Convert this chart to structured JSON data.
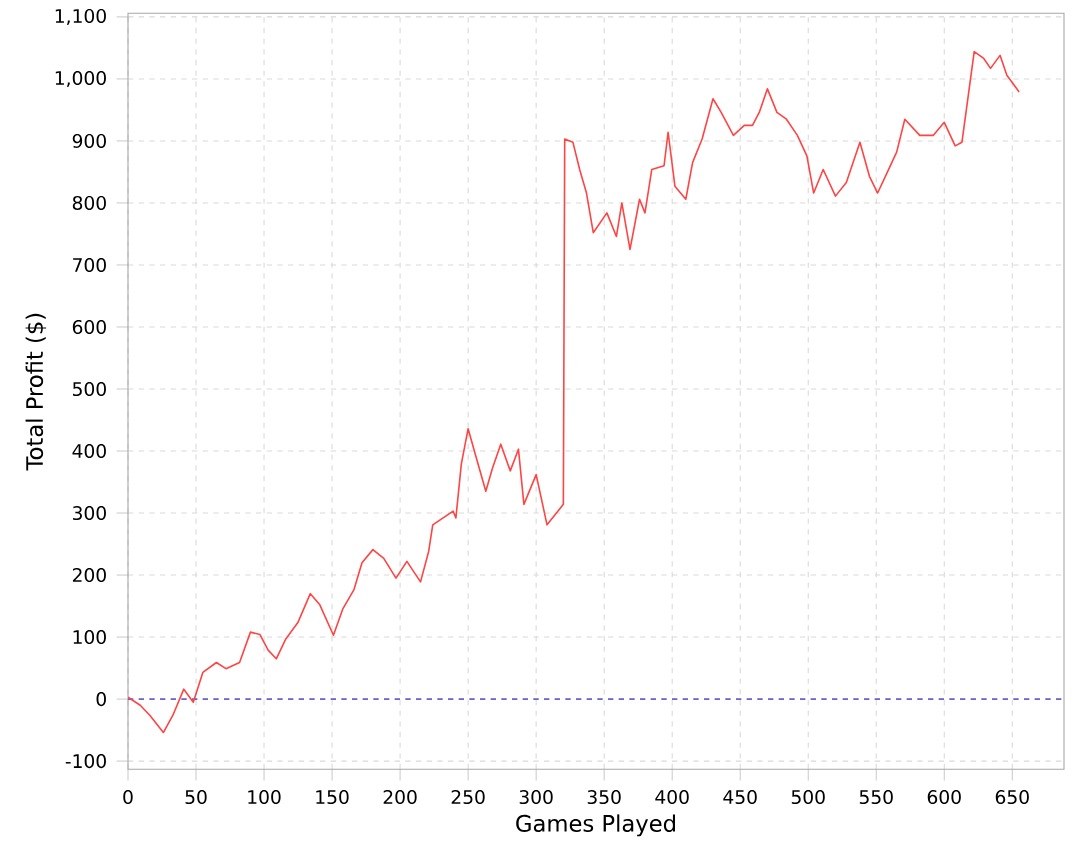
{
  "chart_data": {
    "type": "line",
    "xlabel": "Games Played",
    "ylabel": "Total Profit ($)",
    "x": [
      0,
      9,
      16,
      26,
      33,
      41,
      48,
      55,
      65,
      72,
      82,
      90,
      97,
      103,
      109,
      116,
      125,
      134,
      141,
      151,
      158,
      166,
      172,
      180,
      188,
      197,
      205,
      215,
      221,
      224,
      239,
      241,
      245,
      250,
      256,
      263,
      268,
      274,
      281,
      287,
      291,
      300,
      308,
      320,
      321,
      327,
      332,
      337,
      342,
      352,
      359,
      363,
      369,
      376,
      380,
      385,
      394,
      397,
      402,
      410,
      415,
      422,
      430,
      436,
      445,
      453,
      459,
      464,
      470,
      477,
      484,
      492,
      499,
      504,
      511,
      520,
      528,
      538,
      545,
      551,
      558,
      565,
      571,
      582,
      592,
      600,
      608,
      613,
      622,
      629,
      634,
      641,
      646,
      655
    ],
    "series": [
      {
        "color": "#ff4444",
        "values": [
          3,
          -10,
          -26,
          -54,
          -26,
          16,
          -5,
          43,
          59,
          49,
          59,
          108,
          104,
          79,
          65,
          97,
          124,
          170,
          152,
          103,
          146,
          176,
          220,
          241,
          227,
          195,
          222,
          189,
          238,
          281,
          303,
          292,
          379,
          436,
          389,
          335,
          373,
          411,
          368,
          403,
          314,
          362,
          281,
          314,
          903,
          898,
          854,
          816,
          752,
          784,
          746,
          800,
          725,
          806,
          784,
          854,
          860,
          914,
          827,
          806,
          865,
          903,
          968,
          946,
          909,
          925,
          925,
          946,
          984,
          946,
          935,
          909,
          876,
          816,
          854,
          811,
          833,
          898,
          843,
          816,
          849,
          882,
          935,
          909,
          909,
          930,
          892,
          898,
          1044,
          1033,
          1017,
          1038,
          1006,
          979
        ]
      }
    ],
    "xlim": [
      0,
      688
    ],
    "ylim": [
      -113,
      1106
    ],
    "xticks": [
      0,
      50,
      100,
      150,
      200,
      250,
      300,
      350,
      400,
      450,
      500,
      550,
      600,
      650
    ],
    "yticks": [
      -100,
      0,
      100,
      200,
      300,
      400,
      500,
      600,
      700,
      800,
      900,
      {
        "value": 1000,
        "label": "1,000"
      },
      {
        "value": 1100,
        "label": "1,100"
      }
    ],
    "grid": true,
    "ref_lines": [
      {
        "axis": "y",
        "value": 0,
        "color": "#6666cc",
        "line_style": "dashed"
      }
    ]
  }
}
